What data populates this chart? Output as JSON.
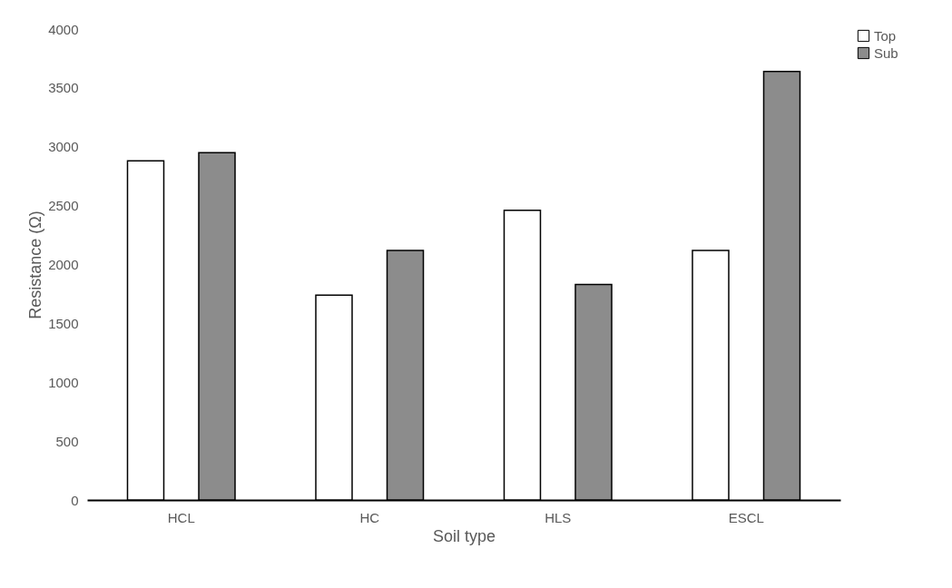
{
  "chart_data": {
    "type": "bar",
    "xlabel": "Soil type",
    "ylabel": "Resistance (Ω)",
    "categories": [
      "HCL",
      "HC",
      "HLS",
      "ESCL"
    ],
    "series": [
      {
        "name": "Top",
        "color": "#ffffff",
        "values": [
          2880,
          1740,
          2460,
          2120
        ]
      },
      {
        "name": "Sub",
        "color": "#8c8c8c",
        "values": [
          2950,
          2120,
          1830,
          3640
        ]
      }
    ],
    "ylim": [
      0,
      4000
    ],
    "yticks": [
      0,
      500,
      1000,
      1500,
      2000,
      2500,
      3000,
      3500,
      4000
    ],
    "grid": false,
    "legend": "right"
  }
}
